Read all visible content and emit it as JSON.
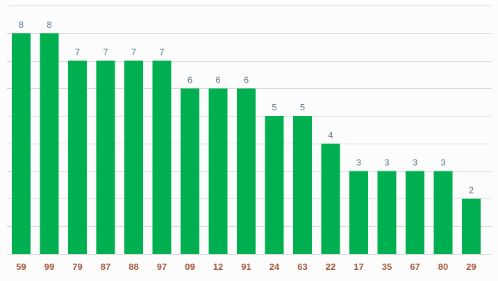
{
  "chart_data": {
    "type": "bar",
    "categories": [
      "59",
      "99",
      "79",
      "87",
      "88",
      "97",
      "09",
      "12",
      "91",
      "24",
      "63",
      "22",
      "17",
      "35",
      "67",
      "80",
      "29"
    ],
    "values": [
      8,
      8,
      7,
      7,
      7,
      7,
      6,
      6,
      6,
      5,
      5,
      4,
      3,
      3,
      3,
      3,
      2
    ],
    "title": "",
    "xlabel": "",
    "ylabel": "",
    "ylim": [
      0,
      9
    ],
    "grid": true,
    "bar_color": "#00b050",
    "data_label_color": "#5a7687",
    "tick_label_color": "#a35438",
    "gridline_color": "#d9d9d9"
  }
}
